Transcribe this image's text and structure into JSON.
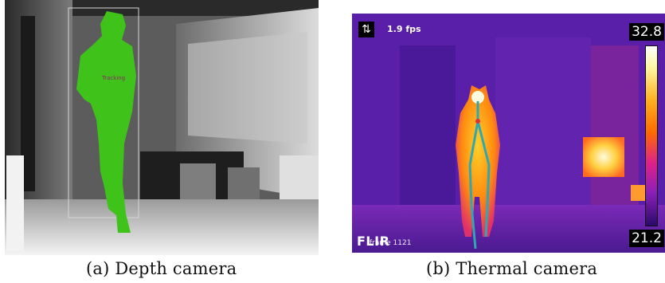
{
  "depth": {
    "caption": "(a) Depth camera",
    "person_label": "Tracking"
  },
  "thermal": {
    "caption": "(b) Thermal camera",
    "fps": "1.9 fps",
    "frame": "frame 1121",
    "logo": "FLIR",
    "scale_max": "32.8",
    "scale_min": "21.2"
  },
  "colors": {
    "person_depth": "#3fc21a",
    "thermal_bg": "#5a1fa8",
    "skeleton": "#2fa8b0"
  }
}
